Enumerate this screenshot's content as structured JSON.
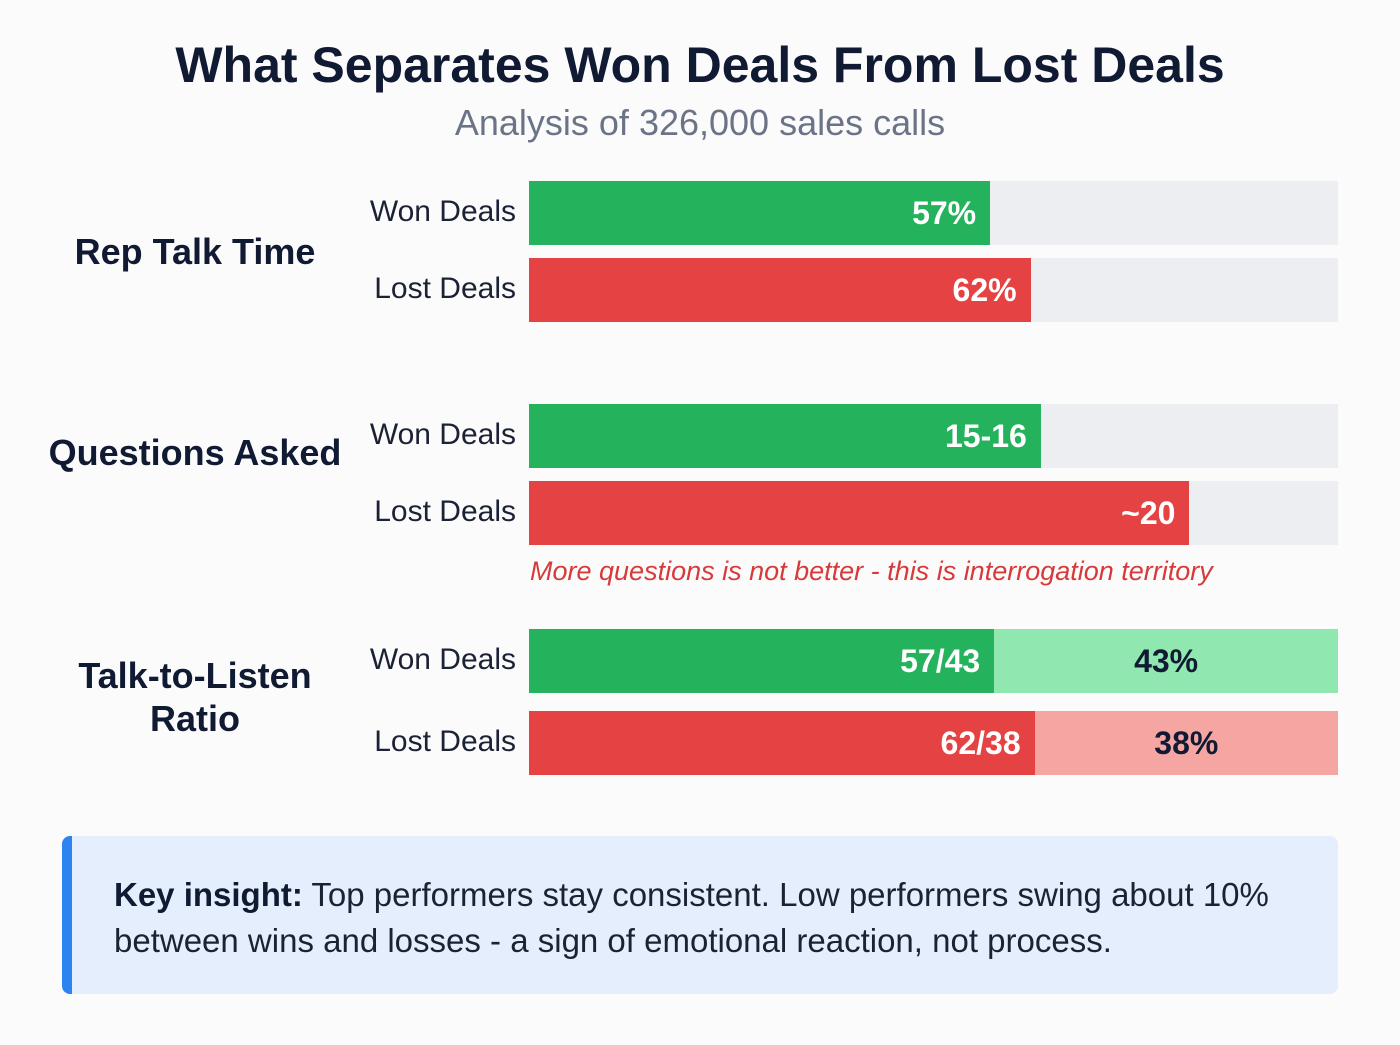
{
  "chart_data": {
    "type": "bar",
    "title": "What Separates Won Deals From Lost Deals",
    "subtitle": "Analysis of 326,000 sales calls",
    "groups": [
      {
        "label": "Rep Talk Time",
        "max": 100,
        "rows": [
          {
            "name": "Won Deals",
            "value": 57,
            "display": "57%",
            "kind": "won"
          },
          {
            "name": "Lost Deals",
            "value": 62,
            "display": "62%",
            "kind": "lost"
          }
        ]
      },
      {
        "label": "Questions Asked",
        "max": 24.5,
        "rows": [
          {
            "name": "Won Deals",
            "value": 15.5,
            "display": "15-16",
            "kind": "won"
          },
          {
            "name": "Lost Deals",
            "value": 20,
            "display": "~20",
            "kind": "lost"
          }
        ],
        "annotation": "More questions is not better - this is interrogation territory"
      },
      {
        "label": "Talk-to-Listen Ratio",
        "max": 100,
        "rows": [
          {
            "name": "Won Deals",
            "value": 57,
            "display": "57/43",
            "remainder": 43,
            "remainder_display": "43%",
            "kind": "won"
          },
          {
            "name": "Lost Deals",
            "value": 62,
            "display": "62/38",
            "remainder": 38,
            "remainder_display": "38%",
            "kind": "lost"
          }
        ]
      }
    ],
    "colors": {
      "won": "#24b35c",
      "lost": "#e54343",
      "won_light": "#90e8b0",
      "lost_light": "#f5a6a3",
      "track": "#eceef2"
    }
  },
  "insight": {
    "label": "Key insight:",
    "text": " Top performers stay consistent. Low performers swing about 10% between wins and losses - a sign of emotional reaction, not process."
  }
}
